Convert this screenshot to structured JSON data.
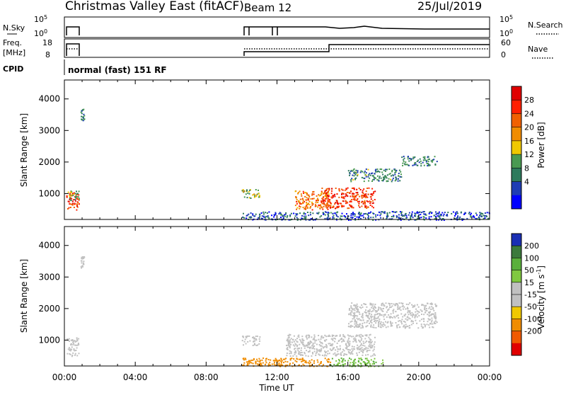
{
  "header": {
    "title": "Christmas Valley East (fitACF)",
    "beam": "Beam 12",
    "date": "25/Jul/2019"
  },
  "status_panels": {
    "nsky": {
      "left_label": "N.Sky",
      "left_scale_top": "10^5",
      "left_scale_bottom": "10^0",
      "right_label": "N.Search",
      "right_scale_top": "10^5",
      "right_scale_bottom": "10^0"
    },
    "freq": {
      "left_label": "Freq.",
      "left_unit": "[MHz]",
      "left_scale_top": "18",
      "left_scale_bottom": "8",
      "right_label": "Nave",
      "right_scale_top": "60",
      "right_scale_bottom": "0"
    },
    "cpid": {
      "label": "CPID",
      "value": "normal (fast) 151 RF"
    }
  },
  "colors": {
    "power": [
      "#0000ff",
      "#1e3cb4",
      "#2e7a5c",
      "#4a9a52",
      "#f0c800",
      "#f08c00",
      "#f06000",
      "#ff2000",
      "#e00000"
    ],
    "velocity_pos": [
      "#1a2fb4",
      "#3c7a3c",
      "#5ab03c",
      "#80c840"
    ],
    "velocity_mid": "#c0c0c0",
    "velocity_neg": [
      "#f0c800",
      "#f08c00",
      "#f05a00",
      "#e00000"
    ]
  },
  "chart_data": [
    {
      "type": "heatmap",
      "title": "Power",
      "xlabel": "",
      "ylabel": "Slant Range [km]",
      "colorbar_label": "Power [dB]",
      "colorbar_ticks": [
        "4",
        "8",
        "12",
        "16",
        "20",
        "24",
        "28"
      ],
      "colorbar_range": [
        0,
        32
      ],
      "x_range_hours": [
        0,
        24
      ],
      "y_range_km": [
        180,
        4600
      ],
      "y_ticks": [
        1000,
        2000,
        3000,
        4000
      ],
      "regions": [
        {
          "t0": 0.1,
          "t1": 0.8,
          "r0": 500,
          "r1": 1100,
          "power": 26
        },
        {
          "t0": 0.1,
          "t1": 0.8,
          "r0": 800,
          "r1": 1100,
          "power": 12
        },
        {
          "t0": 0.9,
          "t1": 1.1,
          "r0": 3300,
          "r1": 3700,
          "power": 10
        },
        {
          "t0": 10.0,
          "t1": 11.0,
          "r0": 850,
          "r1": 1150,
          "power": 14
        },
        {
          "t0": 13.0,
          "t1": 15.0,
          "r0": 500,
          "r1": 1100,
          "power": 22
        },
        {
          "t0": 14.5,
          "t1": 17.5,
          "r0": 550,
          "r1": 1200,
          "power": 26
        },
        {
          "t0": 16.0,
          "t1": 19.0,
          "r0": 1400,
          "r1": 1800,
          "power": 10
        },
        {
          "t0": 19.0,
          "t1": 21.0,
          "r0": 1900,
          "r1": 2200,
          "power": 9
        },
        {
          "t0": 10.0,
          "t1": 24.0,
          "r0": 180,
          "r1": 450,
          "power": 6
        }
      ]
    },
    {
      "type": "heatmap",
      "title": "Velocity",
      "xlabel": "Time UT",
      "ylabel": "Slant Range [km]",
      "colorbar_label": "Velocity [m s^-1]",
      "colorbar_ticks": [
        "200",
        "100",
        "50",
        "15",
        "-15",
        "-50",
        "-100",
        "-200"
      ],
      "x_range_hours": [
        0,
        24
      ],
      "y_range_km": [
        180,
        4600
      ],
      "y_ticks": [
        1000,
        2000,
        3000,
        4000
      ],
      "x_ticks": [
        "00:00",
        "04:00",
        "08:00",
        "12:00",
        "16:00",
        "20:00",
        "00:00"
      ],
      "regions": [
        {
          "t0": 0.1,
          "t1": 0.8,
          "r0": 500,
          "r1": 1100,
          "velocity": 0
        },
        {
          "t0": 0.9,
          "t1": 1.1,
          "r0": 3300,
          "r1": 3700,
          "velocity": 0
        },
        {
          "t0": 10.0,
          "t1": 11.0,
          "r0": 850,
          "r1": 1150,
          "velocity": 0
        },
        {
          "t0": 12.5,
          "t1": 17.5,
          "r0": 500,
          "r1": 1200,
          "velocity": 0
        },
        {
          "t0": 16.0,
          "t1": 21.0,
          "r0": 1400,
          "r1": 2200,
          "velocity": 0
        },
        {
          "t0": 10.0,
          "t1": 15.0,
          "r0": 180,
          "r1": 450,
          "velocity": -60
        },
        {
          "t0": 15.0,
          "t1": 18.0,
          "r0": 180,
          "r1": 450,
          "velocity": 30
        }
      ]
    }
  ]
}
